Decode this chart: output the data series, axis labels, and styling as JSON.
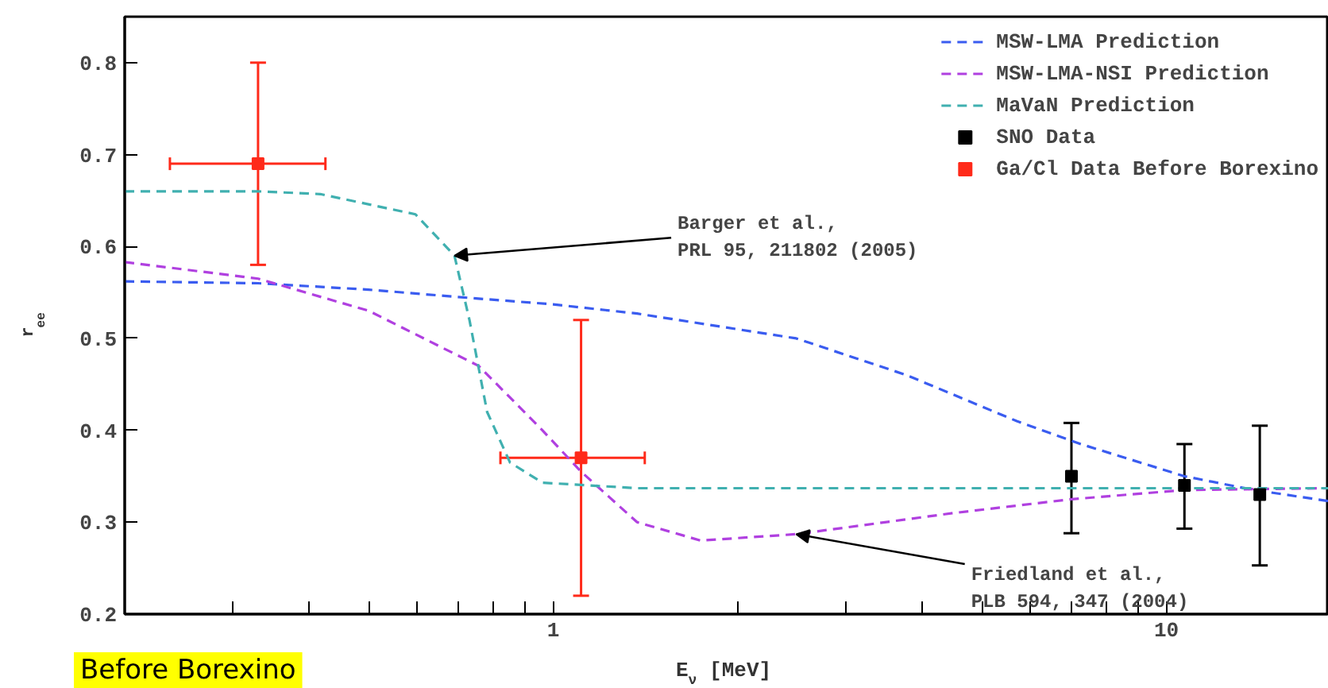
{
  "chart_data": {
    "type": "line",
    "xlabel": "E$_{ν}$ [MeV]",
    "ylabel": "r$_{ee}$",
    "log": "x",
    "xlim": [
      0.2,
      18.4
    ],
    "ylim": [
      0.2,
      0.85
    ],
    "xticks": [
      {
        "value": 0.3,
        "label": null
      },
      {
        "value": 0.4,
        "label": null
      },
      {
        "value": 0.5,
        "label": null
      },
      {
        "value": 0.6,
        "label": null
      },
      {
        "value": 0.7,
        "label": null
      },
      {
        "value": 0.8,
        "label": null
      },
      {
        "value": 0.9,
        "label": null
      },
      1,
      {
        "value": 2,
        "label": null
      },
      {
        "value": 3,
        "label": null
      },
      {
        "value": 4,
        "label": null
      },
      {
        "value": 5,
        "label": null
      },
      {
        "value": 6,
        "label": null
      },
      {
        "value": 7,
        "label": null
      },
      {
        "value": 8,
        "label": null
      },
      {
        "value": 9,
        "label": null
      },
      10
    ],
    "yticks": [
      0.2,
      0.3,
      0.4,
      0.5,
      0.6,
      0.7,
      0.8
    ],
    "grid": false,
    "legend": "top right",
    "line_style": "dashed",
    "marker": "none",
    "series": [
      {
        "name": "MSW-LMA Prediction",
        "color": "#3a5cf0",
        "x": [
          0.2,
          0.33,
          0.5,
          0.7,
          1,
          1.37,
          2.49,
          3.77,
          5.7,
          7.25,
          10.7,
          13.9,
          18.4
        ],
        "values": [
          0.562,
          0.56,
          0.553,
          0.545,
          0.537,
          0.527,
          0.5,
          0.46,
          0.41,
          0.385,
          0.35,
          0.335,
          0.323
        ]
      },
      {
        "name": "MSW-LMA-NSI Prediction",
        "color": "#b040e0",
        "x": [
          0.2,
          0.33,
          0.5,
          0.756,
          0.96,
          1.11,
          1.37,
          1.74,
          2.49,
          4.5,
          7.0,
          10.7,
          18.4
        ],
        "values": [
          0.583,
          0.565,
          0.53,
          0.47,
          0.4,
          0.355,
          0.3,
          0.28,
          0.287,
          0.31,
          0.325,
          0.335,
          0.337
        ]
      },
      {
        "name": "MaVaN Prediction",
        "color": "#40b0b0",
        "x": [
          0.2,
          0.33,
          0.417,
          0.596,
          0.69,
          0.73,
          0.78,
          0.85,
          0.96,
          1.37,
          18.4
        ],
        "values": [
          0.66,
          0.66,
          0.657,
          0.635,
          0.59,
          0.52,
          0.42,
          0.365,
          0.343,
          0.337,
          0.337
        ]
      },
      {
        "name": "SNO Data",
        "type": "scatter",
        "marker": "square",
        "color": "#000000",
        "x": [
          7.0,
          10.7,
          14.2
        ],
        "values": [
          0.35,
          0.34,
          0.33
        ],
        "errors": [
          [
            0.288,
            0.408
          ],
          [
            0.293,
            0.385
          ],
          [
            0.253,
            0.405
          ]
        ]
      },
      {
        "name": "Ga/Cl Data Before Borexino",
        "type": "scatter",
        "marker": "square",
        "color": "#ff2a1a",
        "x": [
          0.33,
          1.11
        ],
        "values": [
          0.69,
          0.37
        ],
        "errors": [
          [
            0.58,
            0.8
          ],
          [
            0.22,
            0.52
          ]
        ],
        "xerrors": [
          [
            0.237,
            0.425
          ],
          [
            0.82,
            1.41
          ]
        ]
      }
    ],
    "annotations": [
      {
        "text": "Barger et al.,\nPRL 95, 211802 (2005)",
        "x": 0.69,
        "y": 0.59
      },
      {
        "text": "Friedland et al.,\nPLB 594, 347 (2004)",
        "x": 2.49,
        "y": 0.287
      },
      "Before Borexino"
    ]
  }
}
